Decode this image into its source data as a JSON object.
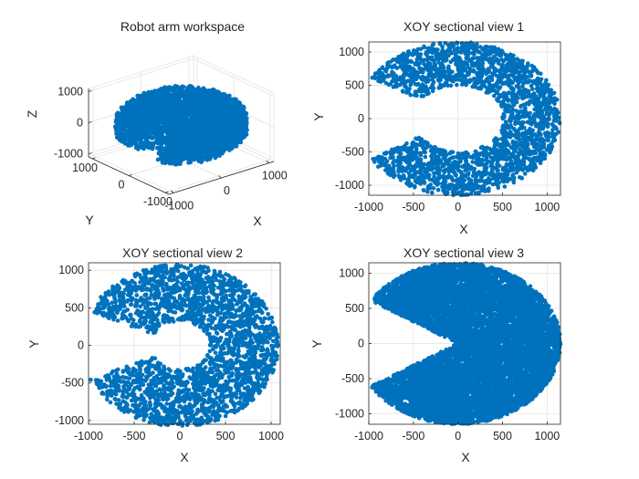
{
  "chart_data": [
    {
      "type": "scatter3d",
      "title": "Robot arm workspace",
      "xlabel": "X",
      "ylabel": "Y",
      "zlabel": "Z",
      "xlim": [
        -1100,
        1100
      ],
      "ylim": [
        -1100,
        1100
      ],
      "zlim": [
        -1100,
        1100
      ],
      "xticks": [
        -1000,
        0,
        1000
      ],
      "yticks": [
        -1000,
        0,
        1000
      ],
      "zticks": [
        -1000,
        0,
        1000
      ],
      "grid": true,
      "color": "#0072bd",
      "shape": {
        "outer_radius": 1100,
        "inner_radius": 450,
        "gap_angle_deg": [
          150,
          210
        ],
        "z_halfheight": 950
      }
    },
    {
      "type": "scatter",
      "title": "XOY sectional view 1",
      "xlabel": "X",
      "ylabel": "Y",
      "xlim": [
        -1000,
        1150
      ],
      "ylim": [
        -1150,
        1150
      ],
      "xticks": [
        -1000,
        -500,
        0,
        500,
        1000
      ],
      "yticks": [
        -1000,
        -500,
        0,
        500,
        1000
      ],
      "grid": true,
      "color": "#0072bd",
      "shape": {
        "outer_radius": 1150,
        "inner_radius": 500,
        "gap_angle_deg": [
          148,
          212
        ]
      }
    },
    {
      "type": "scatter",
      "title": "XOY sectional view 2",
      "xlabel": "X",
      "ylabel": "Y",
      "xlim": [
        -1000,
        1100
      ],
      "ylim": [
        -1050,
        1100
      ],
      "xticks": [
        -1000,
        -500,
        0,
        500,
        1000
      ],
      "yticks": [
        -1000,
        -500,
        0,
        500,
        1000
      ],
      "grid": true,
      "color": "#0072bd",
      "shape": {
        "outer_radius": 1080,
        "inner_radius": 320,
        "gap_angle_deg": [
          155,
          205
        ]
      }
    },
    {
      "type": "scatter",
      "title": "XOY sectional view 3",
      "xlabel": "X",
      "ylabel": "Y",
      "xlim": [
        -1000,
        1150
      ],
      "ylim": [
        -1150,
        1150
      ],
      "xticks": [
        -1000,
        -500,
        0,
        500,
        1000
      ],
      "yticks": [
        -1000,
        -500,
        0,
        500,
        1000
      ],
      "grid": true,
      "color": "#0072bd",
      "shape": {
        "outer_radius": 1150,
        "inner_radius": 0,
        "gap_angle_deg": [
          148,
          212
        ]
      }
    }
  ]
}
